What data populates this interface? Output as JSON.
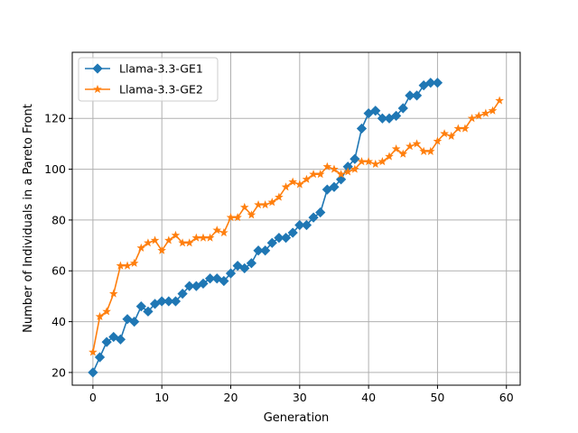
{
  "chart_data": {
    "type": "line",
    "xlabel": "Generation",
    "ylabel": "Number of Individuals in a Pareto Front",
    "xlim": [
      -3,
      62
    ],
    "ylim": [
      15,
      146
    ],
    "xticks": [
      0,
      10,
      20,
      30,
      40,
      50,
      60
    ],
    "yticks": [
      20,
      40,
      60,
      80,
      100,
      120
    ],
    "grid": true,
    "legend_position": "upper-left",
    "series": [
      {
        "name": "Llama-3.3-GE1",
        "color": "#1f77b4",
        "marker": "diamond",
        "x": [
          0,
          1,
          2,
          3,
          4,
          5,
          6,
          7,
          8,
          9,
          10,
          11,
          12,
          13,
          14,
          15,
          16,
          17,
          18,
          19,
          20,
          21,
          22,
          23,
          24,
          25,
          26,
          27,
          28,
          29,
          30,
          31,
          32,
          33,
          34,
          35,
          36,
          37,
          38,
          39,
          40,
          41,
          42,
          43,
          44,
          45,
          46,
          47,
          48,
          49,
          50
        ],
        "y": [
          20,
          26,
          32,
          34,
          33,
          41,
          40,
          46,
          44,
          47,
          48,
          48,
          48,
          51,
          54,
          54,
          55,
          57,
          57,
          56,
          59,
          62,
          61,
          63,
          68,
          68,
          71,
          73,
          73,
          75,
          78,
          78,
          81,
          83,
          92,
          93,
          96,
          101,
          104,
          116,
          122,
          123,
          120,
          120,
          121,
          124,
          129,
          129,
          133,
          134,
          134
        ]
      },
      {
        "name": "Llama-3.3-GE2",
        "color": "#ff7f0e",
        "marker": "star",
        "x": [
          0,
          1,
          2,
          3,
          4,
          5,
          6,
          7,
          8,
          9,
          10,
          11,
          12,
          13,
          14,
          15,
          16,
          17,
          18,
          19,
          20,
          21,
          22,
          23,
          24,
          25,
          26,
          27,
          28,
          29,
          30,
          31,
          32,
          33,
          34,
          35,
          36,
          37,
          38,
          39,
          40,
          41,
          42,
          43,
          44,
          45,
          46,
          47,
          48,
          49,
          50,
          51,
          52,
          53,
          54,
          55,
          56,
          57,
          58,
          59
        ],
        "y": [
          28,
          42,
          44,
          51,
          62,
          62,
          63,
          69,
          71,
          72,
          68,
          72,
          74,
          71,
          71,
          73,
          73,
          73,
          76,
          75,
          81,
          81,
          85,
          82,
          86,
          86,
          87,
          89,
          93,
          95,
          94,
          96,
          98,
          98,
          101,
          100,
          98,
          99,
          100,
          103,
          103,
          102,
          103,
          105,
          108,
          106,
          109,
          110,
          107,
          107,
          111,
          114,
          113,
          116,
          116,
          120,
          121,
          122,
          123,
          127
        ]
      }
    ]
  }
}
